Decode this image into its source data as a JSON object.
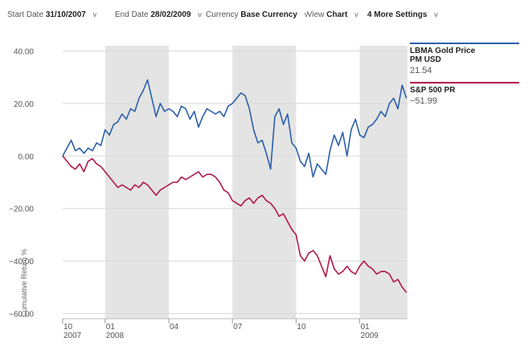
{
  "toolbar": {
    "start_label": "Start Date",
    "start_value": "31/10/2007",
    "end_label": "End Date",
    "end_value": "28/02/2009",
    "currency_label": "Currency",
    "currency_value": "Base Currency",
    "view_label": "View",
    "view_value": "Chart",
    "more_label": "4 More Settings",
    "chevron": "v"
  },
  "legend": [
    {
      "name": "LBMA Gold Price PM USD",
      "value": "21.54",
      "color": "#2b5fa8"
    },
    {
      "name": "S&P 500 PR",
      "value": "−51.99",
      "color": "#b0174a"
    }
  ],
  "chart_data": {
    "type": "line",
    "ylabel": "Cumulative Return %",
    "ylim": [
      -62,
      42
    ],
    "yticks": [
      40,
      20,
      0,
      -20,
      -40,
      -60
    ],
    "ytick_labels": [
      "40.00",
      "20.00",
      "0.00",
      "−20.00",
      "−40.00",
      "−60.00"
    ],
    "x_range": [
      0,
      16.25
    ],
    "xticks": [
      {
        "x": 0,
        "label": "10",
        "sub": "2007"
      },
      {
        "x": 2,
        "label": "01",
        "sub": "2008"
      },
      {
        "x": 5,
        "label": "04",
        "sub": ""
      },
      {
        "x": 8,
        "label": "07",
        "sub": ""
      },
      {
        "x": 11,
        "label": "10",
        "sub": ""
      },
      {
        "x": 14,
        "label": "01",
        "sub": "2009"
      }
    ],
    "shaded_bands": [
      [
        2,
        5
      ],
      [
        8,
        11
      ],
      [
        14,
        16.25
      ]
    ],
    "colors": {
      "gold": "#2b5fa8",
      "sp500": "#b0174a",
      "band": "#e4e4e4",
      "grid": "#d8d8d8"
    },
    "series": [
      {
        "name": "LBMA Gold Price PM USD",
        "color": "#2b5fa8",
        "x": [
          0,
          0.2,
          0.4,
          0.6,
          0.8,
          1.0,
          1.2,
          1.4,
          1.6,
          1.8,
          2.0,
          2.2,
          2.4,
          2.6,
          2.8,
          3.0,
          3.2,
          3.4,
          3.6,
          3.8,
          4.0,
          4.2,
          4.4,
          4.6,
          4.8,
          5.0,
          5.2,
          5.4,
          5.6,
          5.8,
          6.0,
          6.2,
          6.4,
          6.6,
          6.8,
          7.0,
          7.2,
          7.4,
          7.6,
          7.8,
          8.0,
          8.2,
          8.4,
          8.6,
          8.8,
          9.0,
          9.2,
          9.4,
          9.6,
          9.8,
          10.0,
          10.2,
          10.4,
          10.6,
          10.8,
          11.0,
          11.2,
          11.4,
          11.6,
          11.8,
          12.0,
          12.2,
          12.4,
          12.6,
          12.8,
          13.0,
          13.2,
          13.4,
          13.6,
          13.8,
          14.0,
          14.2,
          14.4,
          14.6,
          14.8,
          15.0,
          15.2,
          15.4,
          15.6,
          15.8,
          16.0,
          16.2
        ],
        "values": [
          0,
          3,
          6,
          2,
          3,
          1,
          3,
          2,
          5,
          4,
          10,
          8,
          12,
          13,
          16,
          14,
          18,
          17,
          22,
          25,
          29,
          22,
          15,
          20,
          17,
          18,
          17,
          15,
          19,
          18,
          14,
          17,
          11,
          15,
          18,
          17,
          16,
          17,
          15,
          19,
          20,
          22,
          24,
          23,
          18,
          10,
          5,
          6,
          1,
          -5,
          15,
          18,
          12,
          16,
          5,
          3,
          -2,
          -4,
          1,
          -8,
          -3,
          -5,
          -7,
          2,
          8,
          4,
          9,
          0,
          10,
          14,
          8,
          7,
          11,
          12,
          14,
          17,
          15,
          20,
          22,
          18,
          27,
          22
        ]
      },
      {
        "name": "S&P 500 PR",
        "color": "#b0174a",
        "x": [
          0,
          0.2,
          0.4,
          0.6,
          0.8,
          1.0,
          1.2,
          1.4,
          1.6,
          1.8,
          2.0,
          2.2,
          2.4,
          2.6,
          2.8,
          3.0,
          3.2,
          3.4,
          3.6,
          3.8,
          4.0,
          4.2,
          4.4,
          4.6,
          4.8,
          5.0,
          5.2,
          5.4,
          5.6,
          5.8,
          6.0,
          6.2,
          6.4,
          6.6,
          6.8,
          7.0,
          7.2,
          7.4,
          7.6,
          7.8,
          8.0,
          8.2,
          8.4,
          8.6,
          8.8,
          9.0,
          9.2,
          9.4,
          9.6,
          9.8,
          10.0,
          10.2,
          10.4,
          10.6,
          10.8,
          11.0,
          11.2,
          11.4,
          11.6,
          11.8,
          12.0,
          12.2,
          12.4,
          12.6,
          12.8,
          13.0,
          13.2,
          13.4,
          13.6,
          13.8,
          14.0,
          14.2,
          14.4,
          14.6,
          14.8,
          15.0,
          15.2,
          15.4,
          15.6,
          15.8,
          16.0,
          16.2
        ],
        "values": [
          0,
          -2,
          -4,
          -5,
          -3,
          -6,
          -2,
          -1,
          -3,
          -4,
          -6,
          -8,
          -10,
          -12,
          -11,
          -12,
          -13,
          -11,
          -12,
          -10,
          -11,
          -13,
          -15,
          -13,
          -12,
          -11,
          -10,
          -10,
          -8,
          -9,
          -8,
          -7,
          -6,
          -8,
          -7,
          -7,
          -8,
          -10,
          -13,
          -14,
          -17,
          -18,
          -19,
          -17,
          -16,
          -18,
          -16,
          -15,
          -17,
          -18,
          -20,
          -23,
          -22,
          -25,
          -28,
          -30,
          -38,
          -40,
          -37,
          -36,
          -38,
          -42,
          -46,
          -38,
          -43,
          -45,
          -44,
          -42,
          -44,
          -45,
          -42,
          -40,
          -42,
          -43,
          -45,
          -44,
          -44,
          -45,
          -48,
          -47,
          -50,
          -52
        ]
      }
    ]
  }
}
